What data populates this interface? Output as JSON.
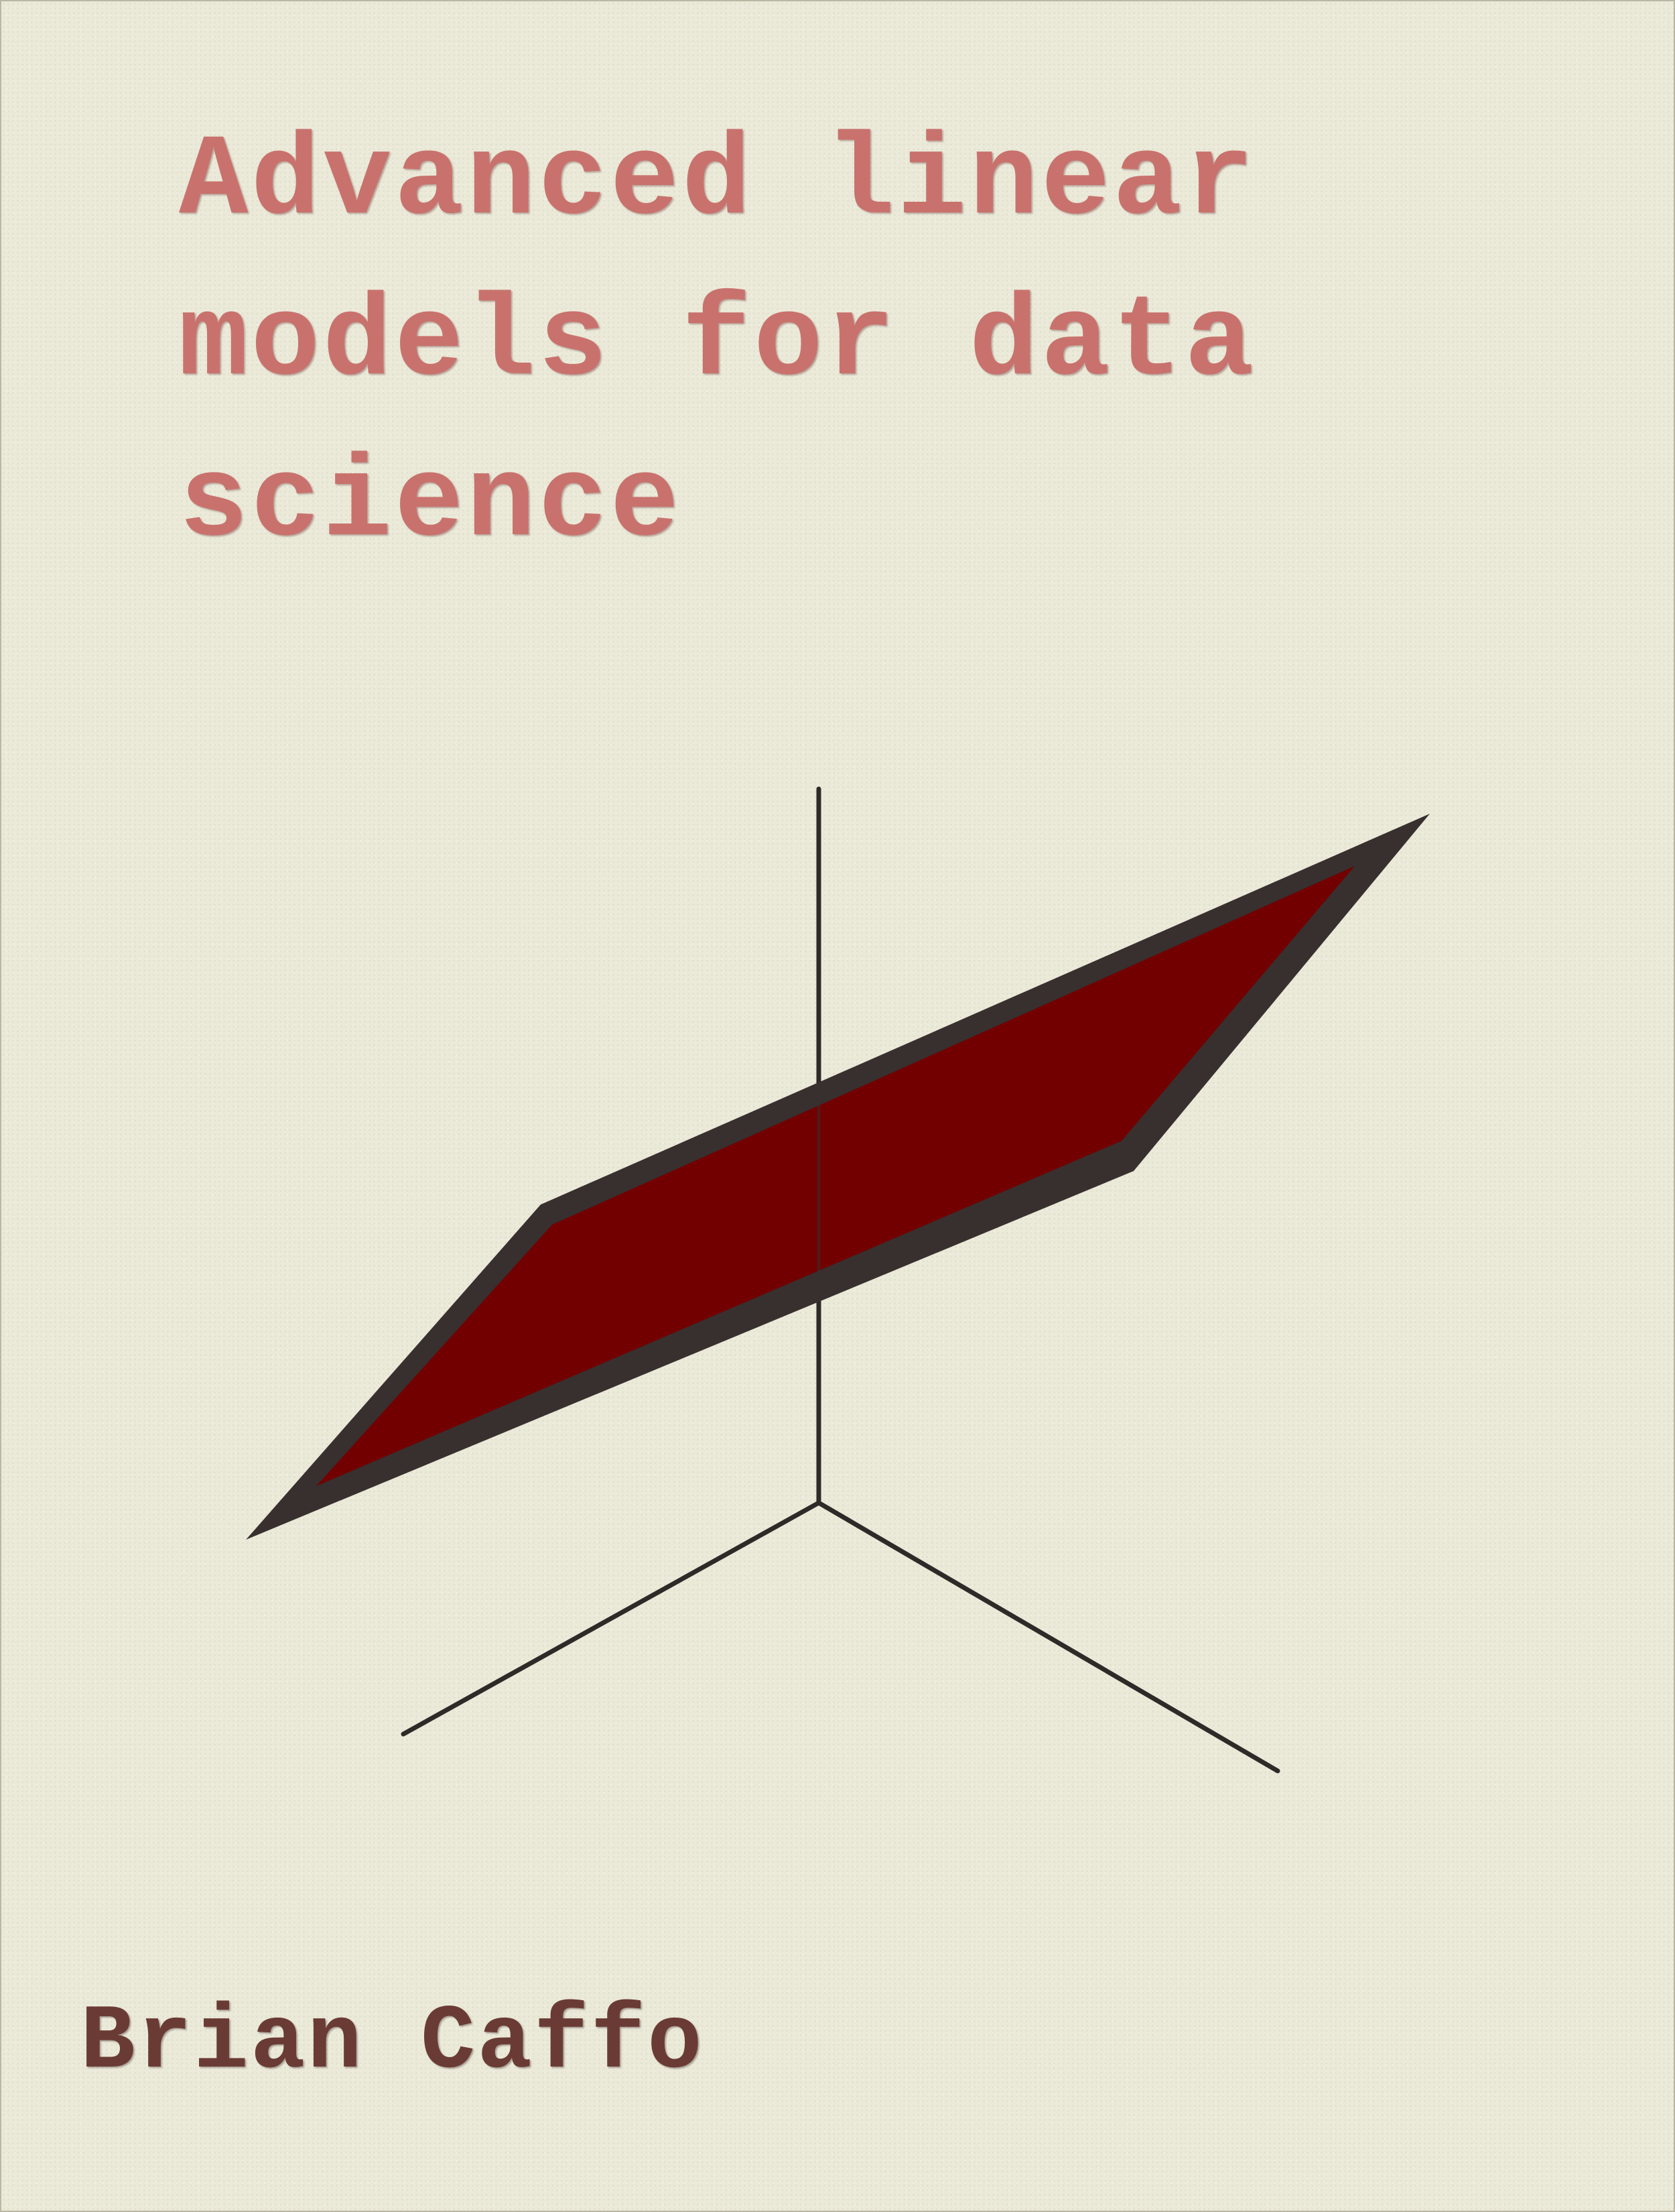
{
  "cover": {
    "title_lines": [
      "Advanced linear",
      "models for data",
      "science"
    ],
    "author": "Brian Caffo"
  },
  "illustration": {
    "icon": "regression-plane-3d-axes-icon"
  },
  "colors": {
    "background": "#ebe9d8",
    "title": "#c9726d",
    "author": "#6a3b34",
    "plane_fill": "#730000",
    "plane_border": "#382f2f",
    "axes": "#2e2a28"
  }
}
